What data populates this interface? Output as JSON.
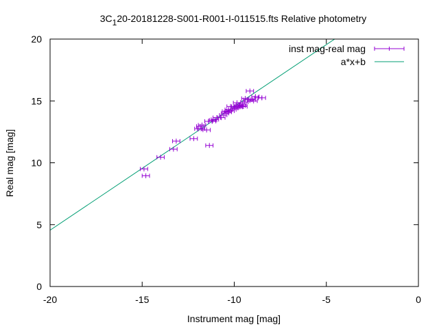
{
  "chart_data": {
    "type": "scatter",
    "title_prefix": "3C",
    "title_subscript": "1",
    "title_suffix": "20-20181228-S001-R001-I-011515.fts Relative photometry",
    "xlabel": "Instrument mag [mag]",
    "ylabel": "Real mag [mag]",
    "xlim": [
      -20,
      0
    ],
    "ylim": [
      0,
      20
    ],
    "xticks": [
      -20,
      -15,
      -10,
      -5,
      0
    ],
    "yticks": [
      0,
      5,
      10,
      15,
      20
    ],
    "grid": false,
    "legend_position": "top-right",
    "series": [
      {
        "name": "inst mag-real mag",
        "kind": "errorbar-points",
        "color": "#9400d3",
        "points": [
          [
            -14.9,
            9.5
          ],
          [
            -14.8,
            8.95
          ],
          [
            -14.0,
            10.45
          ],
          [
            -13.3,
            11.1
          ],
          [
            -13.15,
            11.75
          ],
          [
            -12.2,
            11.95
          ],
          [
            -11.95,
            12.75
          ],
          [
            -11.85,
            12.95
          ],
          [
            -11.8,
            12.75
          ],
          [
            -11.75,
            13.05
          ],
          [
            -11.5,
            12.65
          ],
          [
            -11.4,
            13.35
          ],
          [
            -11.35,
            11.4
          ],
          [
            -11.2,
            13.35
          ],
          [
            -11.15,
            13.45
          ],
          [
            -11.05,
            13.5
          ],
          [
            -10.95,
            13.65
          ],
          [
            -10.7,
            13.65
          ],
          [
            -10.6,
            13.85
          ],
          [
            -10.5,
            14.0
          ],
          [
            -10.45,
            14.15
          ],
          [
            -10.35,
            14.1
          ],
          [
            -10.3,
            14.3
          ],
          [
            -10.2,
            14.2
          ],
          [
            -10.2,
            14.55
          ],
          [
            -10.1,
            14.3
          ],
          [
            -10.0,
            14.4
          ],
          [
            -9.95,
            14.55
          ],
          [
            -9.85,
            14.5
          ],
          [
            -9.85,
            14.85
          ],
          [
            -9.75,
            14.5
          ],
          [
            -9.7,
            14.65
          ],
          [
            -9.6,
            14.6
          ],
          [
            -9.55,
            14.75
          ],
          [
            -9.5,
            14.55
          ],
          [
            -9.45,
            14.9
          ],
          [
            -9.4,
            15.2
          ],
          [
            -9.3,
            15.1
          ],
          [
            -9.2,
            15.1
          ],
          [
            -9.15,
            15.8
          ],
          [
            -9.05,
            15.1
          ],
          [
            -8.95,
            15.0
          ],
          [
            -8.85,
            15.35
          ],
          [
            -8.7,
            15.25
          ],
          [
            -8.5,
            15.25
          ]
        ]
      },
      {
        "name": "a*x+b",
        "kind": "line",
        "color": "#009e73",
        "slope": 1.0,
        "intercept": 24.55
      }
    ]
  }
}
